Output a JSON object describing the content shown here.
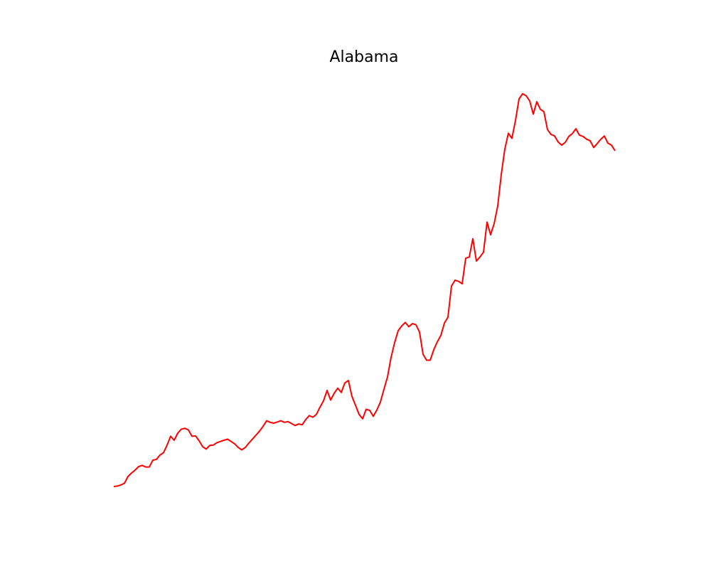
{
  "chart_data": {
    "type": "line",
    "title": "Alabama",
    "xlabel": "",
    "ylabel": "",
    "axes_visible": false,
    "grid": false,
    "legend": "none",
    "line_color": "#ff0000",
    "x_range": [
      0,
      141
    ],
    "y_range": [
      0,
      100
    ],
    "series": [
      {
        "values": [
          0.0,
          0.1,
          0.4,
          0.8,
          2.5,
          3.4,
          4.1,
          5.0,
          5.3,
          4.9,
          4.9,
          6.6,
          6.8,
          7.9,
          8.5,
          10.4,
          12.6,
          11.6,
          13.4,
          14.4,
          14.6,
          14.2,
          12.6,
          12.7,
          11.5,
          10.0,
          9.4,
          10.3,
          10.4,
          11.0,
          11.3,
          11.6,
          11.9,
          11.3,
          10.7,
          9.8,
          9.2,
          9.8,
          10.9,
          11.9,
          12.9,
          13.9,
          15.1,
          16.5,
          16.1,
          15.9,
          16.2,
          16.5,
          16.1,
          16.3,
          15.8,
          15.3,
          15.7,
          15.5,
          16.8,
          17.8,
          17.4,
          18.1,
          19.9,
          21.5,
          24.1,
          21.7,
          23.4,
          24.7,
          23.6,
          26.0,
          26.6,
          22.6,
          20.4,
          18.1,
          17.0,
          19.4,
          19.1,
          17.6,
          19.2,
          21.2,
          24.4,
          27.5,
          32.4,
          36.1,
          39.1,
          40.3,
          41.2,
          40.1,
          40.9,
          40.6,
          38.8,
          33.2,
          31.7,
          31.7,
          34.3,
          36.3,
          37.9,
          41.0,
          42.5,
          50.3,
          51.8,
          51.5,
          50.9,
          57.3,
          57.6,
          62.2,
          56.6,
          57.6,
          58.8,
          66.4,
          63.2,
          66.0,
          70.4,
          78.3,
          84.7,
          88.7,
          87.4,
          91.9,
          97.3,
          98.6,
          98.1,
          96.8,
          93.5,
          96.6,
          94.7,
          94.1,
          89.6,
          88.4,
          88.0,
          86.5,
          85.7,
          86.4,
          87.9,
          88.6,
          89.8,
          88.2,
          87.9,
          87.2,
          86.8,
          85.1,
          86.1,
          87.2,
          88.0,
          86.2,
          85.7,
          84.3
        ]
      }
    ]
  }
}
